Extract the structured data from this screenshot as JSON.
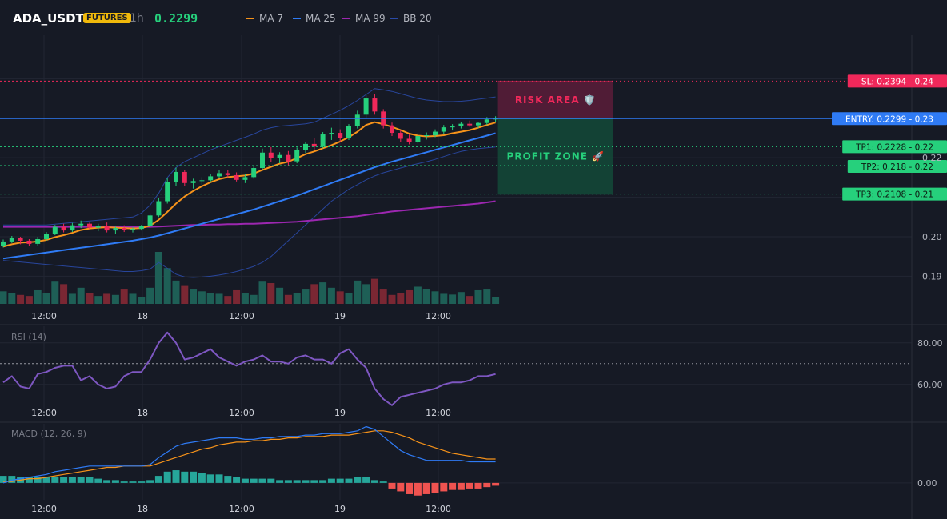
{
  "header": {
    "symbol": "ADA_USDT",
    "badge": "FUTURES",
    "timeframe": "1h",
    "last_price": "0.2299",
    "legend": [
      {
        "label": "MA 7",
        "color": "#f7931a"
      },
      {
        "label": "MA 25",
        "color": "#2f7bf5"
      },
      {
        "label": "MA 99",
        "color": "#9c27b0"
      },
      {
        "label": "BB 20",
        "color": "#2a4aa8"
      }
    ]
  },
  "colors": {
    "background": "#161a25",
    "grid": "#222633",
    "up": "#26d07c",
    "down": "#f0285a",
    "vol_up": "#1e5f56",
    "vol_down": "#7a2733",
    "rsi": "#7e57c2",
    "macd": "#2f7bf5",
    "signal": "#f7931a",
    "hist_up": "#26a69a",
    "hist_down": "#ef5350"
  },
  "chart_data": [
    {
      "type": "candlestick",
      "title": "ADA_USDT",
      "x_tick_labels": [
        "12:00",
        "18",
        "12:00",
        "19",
        "12:00"
      ],
      "y_tick_labels": [
        "0.19",
        "0.20",
        "0.22"
      ],
      "ylim": [
        0.183,
        0.251
      ],
      "candles": [
        [
          0.1977,
          0.1993,
          0.1973,
          0.1988
        ],
        [
          0.1988,
          0.2002,
          0.1984,
          0.1997
        ],
        [
          0.1997,
          0.2,
          0.1981,
          0.199
        ],
        [
          0.199,
          0.1994,
          0.1976,
          0.1982
        ],
        [
          0.1982,
          0.2,
          0.1978,
          0.1994
        ],
        [
          0.1994,
          0.2012,
          0.199,
          0.2007
        ],
        [
          0.2007,
          0.203,
          0.2004,
          0.2025
        ],
        [
          0.2025,
          0.2033,
          0.2011,
          0.2016
        ],
        [
          0.2016,
          0.2035,
          0.2012,
          0.2029
        ],
        [
          0.2029,
          0.2041,
          0.2022,
          0.2033
        ],
        [
          0.2033,
          0.2036,
          0.2018,
          0.2023
        ],
        [
          0.2023,
          0.2033,
          0.2014,
          0.2028
        ],
        [
          0.2028,
          0.2036,
          0.2011,
          0.2016
        ],
        [
          0.2016,
          0.2026,
          0.2007,
          0.2022
        ],
        [
          0.2022,
          0.2029,
          0.2012,
          0.2017
        ],
        [
          0.2017,
          0.2024,
          0.2011,
          0.202
        ],
        [
          0.202,
          0.203,
          0.2016,
          0.2027
        ],
        [
          0.2027,
          0.2059,
          0.2024,
          0.2054
        ],
        [
          0.2054,
          0.2098,
          0.205,
          0.209
        ],
        [
          0.209,
          0.2148,
          0.2084,
          0.2139
        ],
        [
          0.2139,
          0.2175,
          0.2128,
          0.2164
        ],
        [
          0.2164,
          0.2169,
          0.2128,
          0.2136
        ],
        [
          0.2136,
          0.2147,
          0.2122,
          0.2141
        ],
        [
          0.2141,
          0.2151,
          0.2128,
          0.2143
        ],
        [
          0.2143,
          0.2158,
          0.2138,
          0.2153
        ],
        [
          0.2153,
          0.2168,
          0.2149,
          0.2161
        ],
        [
          0.2161,
          0.2168,
          0.215,
          0.2156
        ],
        [
          0.2156,
          0.2163,
          0.214,
          0.2144
        ],
        [
          0.2144,
          0.2158,
          0.2136,
          0.2151
        ],
        [
          0.2151,
          0.2181,
          0.2147,
          0.2174
        ],
        [
          0.2174,
          0.2223,
          0.2168,
          0.2213
        ],
        [
          0.2213,
          0.2227,
          0.2189,
          0.2199
        ],
        [
          0.2199,
          0.2214,
          0.2186,
          0.2207
        ],
        [
          0.2207,
          0.2217,
          0.218,
          0.2191
        ],
        [
          0.2191,
          0.2226,
          0.2186,
          0.2219
        ],
        [
          0.2219,
          0.224,
          0.2212,
          0.2235
        ],
        [
          0.2235,
          0.225,
          0.2221,
          0.2228
        ],
        [
          0.2228,
          0.2265,
          0.2224,
          0.2259
        ],
        [
          0.2259,
          0.2276,
          0.2245,
          0.2263
        ],
        [
          0.2263,
          0.2272,
          0.2241,
          0.2249
        ],
        [
          0.2249,
          0.2285,
          0.2245,
          0.2281
        ],
        [
          0.2281,
          0.2319,
          0.2274,
          0.2309
        ],
        [
          0.2309,
          0.2361,
          0.2301,
          0.235
        ],
        [
          0.235,
          0.2361,
          0.2309,
          0.2317
        ],
        [
          0.2317,
          0.2323,
          0.2274,
          0.2282
        ],
        [
          0.2282,
          0.2289,
          0.2255,
          0.2263
        ],
        [
          0.2263,
          0.2271,
          0.224,
          0.2248
        ],
        [
          0.2248,
          0.2261,
          0.2234,
          0.224
        ],
        [
          0.224,
          0.2262,
          0.2236,
          0.2255
        ],
        [
          0.2255,
          0.2264,
          0.2246,
          0.2257
        ],
        [
          0.2257,
          0.2272,
          0.2252,
          0.2266
        ],
        [
          0.2266,
          0.2283,
          0.2261,
          0.2277
        ],
        [
          0.2277,
          0.2285,
          0.2269,
          0.228
        ],
        [
          0.228,
          0.229,
          0.2274,
          0.2286
        ],
        [
          0.2286,
          0.2294,
          0.2278,
          0.2282
        ],
        [
          0.2282,
          0.2291,
          0.2275,
          0.2288
        ],
        [
          0.2288,
          0.2303,
          0.2283,
          0.2297
        ],
        [
          0.2297,
          0.2305,
          0.229,
          0.2299
        ]
      ],
      "volume": [
        0.35,
        0.3,
        0.25,
        0.22,
        0.38,
        0.3,
        0.62,
        0.55,
        0.28,
        0.45,
        0.3,
        0.22,
        0.28,
        0.25,
        0.4,
        0.28,
        0.2,
        0.45,
        1.45,
        1.0,
        0.65,
        0.5,
        0.4,
        0.35,
        0.3,
        0.28,
        0.22,
        0.38,
        0.3,
        0.25,
        0.62,
        0.58,
        0.45,
        0.25,
        0.3,
        0.4,
        0.55,
        0.6,
        0.45,
        0.35,
        0.3,
        0.65,
        0.55,
        0.7,
        0.4,
        0.25,
        0.3,
        0.38,
        0.48,
        0.42,
        0.35,
        0.28,
        0.26,
        0.33,
        0.22,
        0.38,
        0.4,
        0.2
      ],
      "ma7": [
        0.1975,
        0.1981,
        0.1985,
        0.1986,
        0.1988,
        0.1992,
        0.1999,
        0.2004,
        0.201,
        0.2017,
        0.2021,
        0.2023,
        0.2024,
        0.2023,
        0.2022,
        0.2021,
        0.2022,
        0.2028,
        0.2043,
        0.2063,
        0.2084,
        0.2102,
        0.2116,
        0.2128,
        0.2138,
        0.2146,
        0.2151,
        0.2153,
        0.2155,
        0.216,
        0.2169,
        0.2177,
        0.2185,
        0.219,
        0.2199,
        0.2209,
        0.2216,
        0.2224,
        0.2232,
        0.2241,
        0.2252,
        0.2266,
        0.2283,
        0.229,
        0.2285,
        0.2278,
        0.227,
        0.2261,
        0.2256,
        0.2254,
        0.2255,
        0.2257,
        0.2262,
        0.2266,
        0.227,
        0.2276,
        0.2283,
        0.2289
      ],
      "ma25": [
        0.1945,
        0.1948,
        0.1951,
        0.1954,
        0.1957,
        0.196,
        0.1963,
        0.1966,
        0.1969,
        0.1972,
        0.1975,
        0.1978,
        0.1981,
        0.1984,
        0.1987,
        0.199,
        0.1994,
        0.1998,
        0.2003,
        0.2009,
        0.2015,
        0.2021,
        0.2027,
        0.2033,
        0.2039,
        0.2045,
        0.2051,
        0.2057,
        0.2063,
        0.2069,
        0.2076,
        0.2083,
        0.209,
        0.2097,
        0.2104,
        0.2112,
        0.212,
        0.2128,
        0.2136,
        0.2144,
        0.2152,
        0.216,
        0.2168,
        0.2176,
        0.2183,
        0.219,
        0.2196,
        0.2202,
        0.2208,
        0.2214,
        0.222,
        0.2226,
        0.2232,
        0.2238,
        0.2244,
        0.225,
        0.2256,
        0.2262
      ],
      "ma99": [
        0.2025,
        0.2025,
        0.2025,
        0.2025,
        0.2025,
        0.2025,
        0.2025,
        0.2025,
        0.2025,
        0.2025,
        0.2025,
        0.2025,
        0.2025,
        0.2025,
        0.2025,
        0.2025,
        0.2025,
        0.2025,
        0.2026,
        0.2027,
        0.2028,
        0.2029,
        0.203,
        0.203,
        0.2031,
        0.2031,
        0.2032,
        0.2032,
        0.2033,
        0.2033,
        0.2034,
        0.2035,
        0.2036,
        0.2037,
        0.2038,
        0.204,
        0.2042,
        0.2044,
        0.2046,
        0.2048,
        0.205,
        0.2052,
        0.2055,
        0.2058,
        0.2061,
        0.2064,
        0.2066,
        0.2068,
        0.207,
        0.2072,
        0.2074,
        0.2076,
        0.2078,
        0.208,
        0.2082,
        0.2084,
        0.2087,
        0.209
      ],
      "bb_upper": [
        0.203,
        0.203,
        0.203,
        0.203,
        0.203,
        0.203,
        0.2032,
        0.2034,
        0.2036,
        0.2038,
        0.204,
        0.2042,
        0.2044,
        0.2046,
        0.2048,
        0.205,
        0.206,
        0.208,
        0.211,
        0.215,
        0.2175,
        0.219,
        0.22,
        0.221,
        0.222,
        0.2228,
        0.2236,
        0.2244,
        0.2252,
        0.226,
        0.227,
        0.2276,
        0.228,
        0.2282,
        0.2284,
        0.2286,
        0.229,
        0.23,
        0.231,
        0.232,
        0.2332,
        0.2345,
        0.236,
        0.2375,
        0.2372,
        0.2368,
        0.2362,
        0.2356,
        0.235,
        0.2346,
        0.2344,
        0.2342,
        0.2342,
        0.2343,
        0.2345,
        0.2348,
        0.2351,
        0.2354
      ],
      "bb_lower": [
        0.194,
        0.1938,
        0.1936,
        0.1934,
        0.1932,
        0.193,
        0.1928,
        0.1926,
        0.1924,
        0.1922,
        0.192,
        0.1918,
        0.1916,
        0.1914,
        0.1912,
        0.1912,
        0.1914,
        0.1918,
        0.1935,
        0.192,
        0.1905,
        0.1898,
        0.1897,
        0.1898,
        0.19,
        0.1903,
        0.1907,
        0.1912,
        0.1918,
        0.1925,
        0.1935,
        0.195,
        0.197,
        0.199,
        0.201,
        0.203,
        0.205,
        0.207,
        0.209,
        0.2105,
        0.212,
        0.2132,
        0.2144,
        0.2154,
        0.2162,
        0.2168,
        0.2174,
        0.218,
        0.2185,
        0.219,
        0.2196,
        0.2203,
        0.221,
        0.2216,
        0.222,
        0.2223,
        0.2225,
        0.2227
      ],
      "levels": [
        {
          "label": "SL: 0.2394 - 0.24",
          "value": 0.2394,
          "color": "#f0285a",
          "style": "dotted",
          "text_color": "#ffffff"
        },
        {
          "label": "ENTRY: 0.2299 - 0.23",
          "value": 0.2299,
          "color": "#2f7bf5",
          "style": "solid",
          "text_color": "#ffffff"
        },
        {
          "label": "TP1: 0.2228 - 0.22",
          "value": 0.2228,
          "color": "#26d07c",
          "style": "dotted",
          "text_color": "#0d1a12"
        },
        {
          "label": "TP2: 0.218 - 0.22",
          "value": 0.218,
          "color": "#26d07c",
          "style": "dotted",
          "text_color": "#0d1a12"
        },
        {
          "label": "TP3: 0.2108 - 0.21",
          "value": 0.2108,
          "color": "#26d07c",
          "style": "dotted",
          "text_color": "#0d1a12"
        }
      ],
      "zones": [
        {
          "label": "RISK AREA 🛡️",
          "from": 0.2299,
          "to": 0.2394,
          "fill": "#5a1d3a",
          "text_color": "#f0285a"
        },
        {
          "label": "PROFIT ZONE 🚀",
          "from": 0.2108,
          "to": 0.2299,
          "fill": "#134a38",
          "text_color": "#26d07c"
        }
      ]
    },
    {
      "type": "line",
      "title": "RSI (14)",
      "x_tick_labels": [
        "12:00",
        "18",
        "12:00",
        "19",
        "12:00"
      ],
      "y_tick_labels": [
        "80.00",
        "60.00"
      ],
      "ylim": [
        48,
        88
      ],
      "reference_line": 70,
      "series": [
        {
          "values": [
            61,
            64,
            59,
            58,
            65,
            66,
            68,
            69,
            69,
            62,
            64,
            60,
            58,
            59,
            64,
            66,
            66,
            72,
            80,
            85,
            80,
            72,
            73,
            75,
            77,
            73,
            71,
            69,
            71,
            72,
            74,
            71,
            71,
            70,
            73,
            74,
            72,
            72,
            70,
            75,
            77,
            72,
            68,
            58,
            53,
            50,
            54,
            55,
            56,
            57,
            58,
            60,
            61,
            61,
            62,
            64,
            64,
            65
          ]
        }
      ]
    },
    {
      "type": "line",
      "title": "MACD (12, 26, 9)",
      "x_tick_labels": [
        "12:00",
        "18",
        "12:00",
        "19",
        "12:00"
      ],
      "y_tick_labels": [
        "0.00"
      ],
      "ylim": [
        -0.0012,
        0.0042
      ],
      "series": [
        {
          "values": [
            0.0,
            0.0002,
            0.0003,
            0.0004,
            0.0005,
            0.0006,
            0.0008,
            0.0009,
            0.001,
            0.0011,
            0.0012,
            0.0012,
            0.0012,
            0.0012,
            0.0012,
            0.0012,
            0.0012,
            0.0013,
            0.0018,
            0.0022,
            0.0026,
            0.0028,
            0.0029,
            0.003,
            0.0031,
            0.0032,
            0.0032,
            0.0032,
            0.0031,
            0.0031,
            0.0032,
            0.0032,
            0.0033,
            0.0033,
            0.0033,
            0.0034,
            0.0034,
            0.0035,
            0.0035,
            0.0035,
            0.0036,
            0.0037,
            0.004,
            0.0038,
            0.0033,
            0.0028,
            0.0023,
            0.002,
            0.0018,
            0.0016,
            0.0016,
            0.0016,
            0.0016,
            0.0016,
            0.0015,
            0.0015,
            0.0015,
            0.0015
          ]
        },
        {
          "values": [
            0.0001,
            0.0001,
            0.0002,
            0.0003,
            0.0003,
            0.0004,
            0.0005,
            0.0006,
            0.0007,
            0.0008,
            0.0009,
            0.001,
            0.0011,
            0.0011,
            0.0012,
            0.0012,
            0.0012,
            0.0012,
            0.0014,
            0.0016,
            0.0018,
            0.002,
            0.0022,
            0.0024,
            0.0025,
            0.0027,
            0.0028,
            0.0029,
            0.0029,
            0.003,
            0.003,
            0.0031,
            0.0031,
            0.0032,
            0.0032,
            0.0033,
            0.0033,
            0.0033,
            0.0034,
            0.0034,
            0.0034,
            0.0035,
            0.0036,
            0.0037,
            0.0037,
            0.0036,
            0.0034,
            0.0032,
            0.0029,
            0.0027,
            0.0025,
            0.0023,
            0.0021,
            0.002,
            0.0019,
            0.0018,
            0.0017,
            0.0017
          ]
        }
      ],
      "histogram": [
        0.0005,
        0.0005,
        0.0004,
        0.0004,
        0.0004,
        0.0004,
        0.0004,
        0.0004,
        0.0004,
        0.0004,
        0.0004,
        0.0003,
        0.0002,
        0.0002,
        0.0001,
        0.0001,
        0.0001,
        0.0002,
        0.0005,
        0.0008,
        0.0009,
        0.0008,
        0.0008,
        0.0007,
        0.0006,
        0.0006,
        0.0005,
        0.0004,
        0.0003,
        0.0003,
        0.0003,
        0.0003,
        0.0002,
        0.0002,
        0.0002,
        0.0002,
        0.0002,
        0.0002,
        0.0003,
        0.0003,
        0.0003,
        0.0004,
        0.0004,
        0.0002,
        0.0001,
        -0.0004,
        -0.0006,
        -0.0008,
        -0.0009,
        -0.0008,
        -0.0007,
        -0.0006,
        -0.0005,
        -0.0005,
        -0.0004,
        -0.0004,
        -0.0003,
        -0.0002
      ]
    }
  ]
}
